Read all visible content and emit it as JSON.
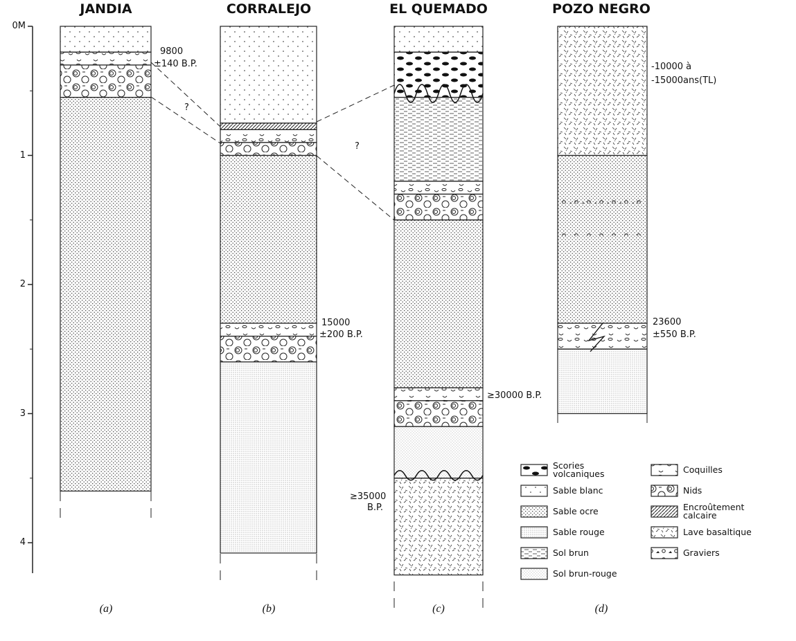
{
  "axis": {
    "ticks": [
      {
        "value": 0,
        "label": "0M"
      },
      1,
      2,
      3,
      4
    ]
  },
  "columns": [
    {
      "title": "JANDIA",
      "caption": "(a)",
      "layers": [
        {
          "top": 0,
          "bottom": 0.2,
          "legend": 1
        },
        {
          "top": 0.2,
          "bottom": 0.3,
          "legend": 6
        },
        {
          "top": 0.3,
          "bottom": 0.55,
          "legend": 7
        },
        {
          "top": 0.55,
          "bottom": 3.6,
          "legend": 2
        }
      ]
    },
    {
      "title": "CORRALEJO",
      "caption": "(b)",
      "layers": [
        {
          "top": 0,
          "bottom": 0.75,
          "legend": 1
        },
        {
          "top": 0.75,
          "bottom": 0.8,
          "legend": 8
        },
        {
          "top": 0.8,
          "bottom": 0.9,
          "legend": 6
        },
        {
          "top": 0.9,
          "bottom": 1.0,
          "legend": 7
        },
        {
          "top": 1.0,
          "bottom": 2.3,
          "legend": 2
        },
        {
          "top": 2.3,
          "bottom": 2.4,
          "legend": 6
        },
        {
          "top": 2.4,
          "bottom": 2.6,
          "legend": 7
        },
        {
          "top": 2.6,
          "bottom": 4.08,
          "legend": 3
        }
      ]
    },
    {
      "title": "EL QUEMADO",
      "caption": "(c)",
      "layers": [
        {
          "top": 0,
          "bottom": 0.2,
          "legend": 1
        },
        {
          "top": 0.2,
          "bottom": 0.55,
          "legend": 0
        },
        {
          "top": 0.55,
          "bottom": 1.2,
          "legend": 4
        },
        {
          "top": 1.2,
          "bottom": 1.3,
          "legend": 6
        },
        {
          "top": 1.3,
          "bottom": 1.5,
          "legend": 7
        },
        {
          "top": 1.5,
          "bottom": 2.8,
          "legend": 2
        },
        {
          "top": 2.8,
          "bottom": 2.9,
          "legend": 6
        },
        {
          "top": 2.9,
          "bottom": 3.1,
          "legend": 7
        },
        {
          "top": 3.1,
          "bottom": 3.5,
          "legend": 5
        },
        {
          "top": 3.5,
          "bottom": 4.25,
          "legend": 9
        }
      ]
    },
    {
      "title": "POZO NEGRO",
      "caption": "(d)",
      "layers": [
        {
          "top": 0,
          "bottom": 1.0,
          "legend": 9
        },
        {
          "top": 1.0,
          "bottom": 2.3,
          "legend": 2
        },
        {
          "top": 2.3,
          "bottom": 2.5,
          "legend": 6
        },
        {
          "top": 2.5,
          "bottom": 3.0,
          "legend": 3
        }
      ]
    }
  ],
  "annotations": [
    "9800",
    "±140 B.P.",
    "?",
    "15000",
    "±200 B.P.",
    "?",
    "≥30000 B.P.",
    "≥35000",
    "B.P.",
    "-10000 à",
    "-15000ans(TL)",
    "23600",
    "±550 B.P."
  ],
  "legend": [
    {
      "label": [
        "Scories",
        "volcaniques"
      ]
    },
    {
      "label": [
        "Sable blanc"
      ]
    },
    {
      "label": [
        "Sable ocre"
      ]
    },
    {
      "label": [
        "Sable rouge"
      ]
    },
    {
      "label": [
        "Sol brun"
      ]
    },
    {
      "label": [
        "Sol brun-rouge"
      ]
    },
    {
      "label": [
        "Coquilles"
      ]
    },
    {
      "label": [
        "Nids"
      ]
    },
    {
      "label": [
        "Encroûtement",
        "calcaire"
      ]
    },
    {
      "label": [
        "Lave basaltique"
      ]
    },
    {
      "label": [
        "Graviers"
      ]
    }
  ]
}
